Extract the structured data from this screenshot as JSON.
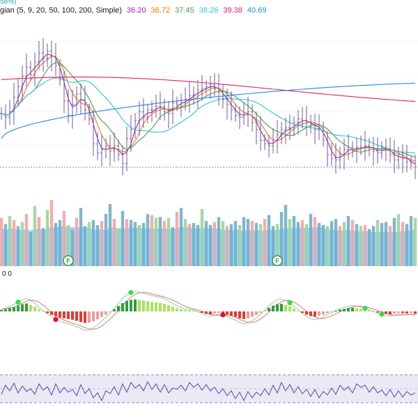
{
  "legend": {
    "top_fragment": "58%)",
    "ma_label": "gian (5, 9, 20, 50, 100, 200, Simple)",
    "values": [
      {
        "text": "36.20",
        "color": "#9c27b0"
      },
      {
        "text": "36.72",
        "color": "#f57c00"
      },
      {
        "text": "37.45",
        "color": "#43a047"
      },
      {
        "text": "38.26",
        "color": "#26c6da"
      },
      {
        "text": "39.38",
        "color": "#e91e63"
      },
      {
        "text": "40.69",
        "color": "#1e88e5"
      }
    ]
  },
  "indicator2_label": "0 0",
  "colors": {
    "candle": "#6d5a9e",
    "ma5": "#9c27b0",
    "ma9": "#f57c00",
    "ma20": "#43a047",
    "ma50": "#26c6da",
    "ma100": "#e91e63",
    "ma200": "#1e88e5",
    "vol_up": "#9fd39a",
    "vol_down": "#f4a3a3",
    "vol_ma": "#90caf9",
    "vol_mid": "#6fb0c8",
    "hist_up": "#2e9e3a",
    "hist_down": "#e53935",
    "signal_green": "#32e04a",
    "signal_red": "#e8102a",
    "rsi_line": "#5b5ba8",
    "rsi_band": "#ece9f7"
  },
  "chart_data": [
    {
      "type": "candlestick",
      "title": "",
      "n_bars": 100,
      "close": [
        38.7,
        38.5,
        38.8,
        39.6,
        40.2,
        40.8,
        41.3,
        40.9,
        41.6,
        42.1,
        41.8,
        42.2,
        41.9,
        41.4,
        40.6,
        39.4,
        38.6,
        39.2,
        39.8,
        39.5,
        38.9,
        38.4,
        37.0,
        36.5,
        36.7,
        36.9,
        36.6,
        36.9,
        36.4,
        35.9,
        37.3,
        37.8,
        38.3,
        38.8,
        38.5,
        38.9,
        38.9,
        39.1,
        39.1,
        38.8,
        38.7,
        39.3,
        39.2,
        39.3,
        39.5,
        39.7,
        39.8,
        40.0,
        40.1,
        40.2,
        40.3,
        40.1,
        39.9,
        39.5,
        39.2,
        38.9,
        38.6,
        38.5,
        38.7,
        38.8,
        38.2,
        37.8,
        37.2,
        37.0,
        36.9,
        37.2,
        37.5,
        37.8,
        37.9,
        37.8,
        38.2,
        38.4,
        38.3,
        38.2,
        38.1,
        37.8,
        37.9,
        37.2,
        36.4,
        36.2,
        36.1,
        36.4,
        36.7,
        36.8,
        36.6,
        36.8,
        36.8,
        36.9,
        36.8,
        36.6,
        36.5,
        36.8,
        36.7,
        36.4,
        36.1,
        36.4,
        36.2,
        36.0,
        35.9,
        35.7
      ],
      "ylim": [
        35.5,
        43.5
      ],
      "moving_averages": [
        {
          "period": 5,
          "last": 36.2
        },
        {
          "period": 9,
          "last": 36.72
        },
        {
          "period": 20,
          "last": 37.45
        },
        {
          "period": 50,
          "last": 38.26
        },
        {
          "period": 100,
          "last": 39.38
        },
        {
          "period": 200,
          "last": 40.69
        }
      ]
    },
    {
      "type": "bar",
      "title": "",
      "volume": [
        48,
        42,
        50,
        46,
        40,
        44,
        52,
        34,
        60,
        49,
        38,
        56,
        66,
        43,
        46,
        55,
        41,
        36,
        48,
        58,
        40,
        44,
        46,
        41,
        45,
        52,
        62,
        47,
        37,
        55,
        47,
        46,
        44,
        41,
        43,
        52,
        51,
        48,
        49,
        45,
        48,
        39,
        54,
        58,
        47,
        42,
        43,
        41,
        57,
        45,
        41,
        44,
        49,
        45,
        40,
        42,
        45,
        41,
        49,
        47,
        45,
        43,
        42,
        47,
        51,
        40,
        42,
        54,
        61,
        47,
        50,
        44,
        46,
        42,
        52,
        49,
        43,
        41,
        40,
        45,
        47,
        40,
        44,
        50,
        46,
        42,
        40,
        41,
        37,
        40,
        46,
        43,
        44,
        40,
        48,
        52,
        44,
        42,
        50,
        48
      ],
      "up_bars": [
        2,
        5,
        8,
        11,
        16,
        21,
        28,
        33,
        37,
        40,
        44,
        48,
        53,
        57,
        62,
        66,
        69,
        73,
        78,
        82,
        86,
        90,
        95,
        99
      ],
      "event_markers": [
        {
          "bar": 16,
          "label": "F"
        },
        {
          "bar": 66,
          "label": "F"
        }
      ]
    },
    {
      "type": "bar",
      "title": "",
      "histogram": [
        0.4,
        0.6,
        0.9,
        1.2,
        1.6,
        2.0,
        2.2,
        1.8,
        1.3,
        0.6,
        0.1,
        -0.5,
        -1.0,
        -1.4,
        -1.7,
        -1.9,
        -2.1,
        -2.3,
        -2.6,
        -2.9,
        -3.2,
        -3.1,
        -2.7,
        -2.2,
        -1.5,
        -0.9,
        -0.2,
        0.6,
        1.5,
        2.3,
        2.9,
        3.2,
        3.3,
        3.2,
        3.0,
        2.8,
        2.6,
        2.5,
        2.3,
        2.1,
        1.7,
        1.3,
        0.9,
        0.6,
        0.4,
        0.3,
        0.2,
        -0.1,
        -0.4,
        -0.7,
        -0.9,
        -0.6,
        -0.4,
        -0.6,
        -0.9,
        -1.2,
        -1.5,
        -1.9,
        -2.1,
        -1.9,
        -1.5,
        -1.0,
        -0.4,
        0.3,
        1.0,
        1.6,
        2.0,
        2.1,
        1.8,
        1.4,
        0.8,
        0.2,
        -0.4,
        -0.9,
        -1.3,
        -1.4,
        -1.2,
        -0.9,
        -0.5,
        -0.2,
        0.2,
        0.5,
        0.7,
        0.9,
        1.0,
        0.9,
        0.7,
        0.5,
        0.3,
        0.0,
        -0.3,
        -0.5,
        -0.7,
        -0.8,
        -0.6,
        -0.4,
        -0.5,
        -0.6,
        -0.5,
        -0.7
      ],
      "signals": [
        {
          "bar": 4,
          "kind": "buy"
        },
        {
          "bar": 13,
          "kind": "sell"
        },
        {
          "bar": 31,
          "kind": "buy"
        },
        {
          "bar": 53,
          "kind": "sell"
        },
        {
          "bar": 69,
          "kind": "buy"
        },
        {
          "bar": 87,
          "kind": "buy"
        },
        {
          "bar": 91,
          "kind": "buy"
        }
      ]
    },
    {
      "type": "line",
      "title": "",
      "rsi": [
        42,
        55,
        47,
        58,
        44,
        54,
        46,
        50,
        42,
        57,
        48,
        53,
        41,
        57,
        44,
        52,
        45,
        49,
        40,
        56,
        43,
        50,
        37,
        44,
        33,
        47,
        43,
        53,
        41,
        57,
        45,
        59,
        51,
        56,
        47,
        60,
        49,
        57,
        45,
        56,
        44,
        51,
        49,
        55,
        47,
        59,
        52,
        57,
        48,
        56,
        47,
        52,
        43,
        50,
        40,
        47,
        36,
        45,
        33,
        46,
        37,
        45,
        40,
        50,
        41,
        55,
        44,
        59,
        47,
        56,
        44,
        53,
        43,
        49,
        39,
        49,
        37,
        46,
        41,
        51,
        42,
        55,
        48,
        53,
        44,
        57,
        52,
        55,
        45,
        53,
        44,
        48,
        40,
        49,
        38,
        47,
        38,
        46,
        41,
        44
      ],
      "band": [
        30,
        70
      ]
    }
  ]
}
